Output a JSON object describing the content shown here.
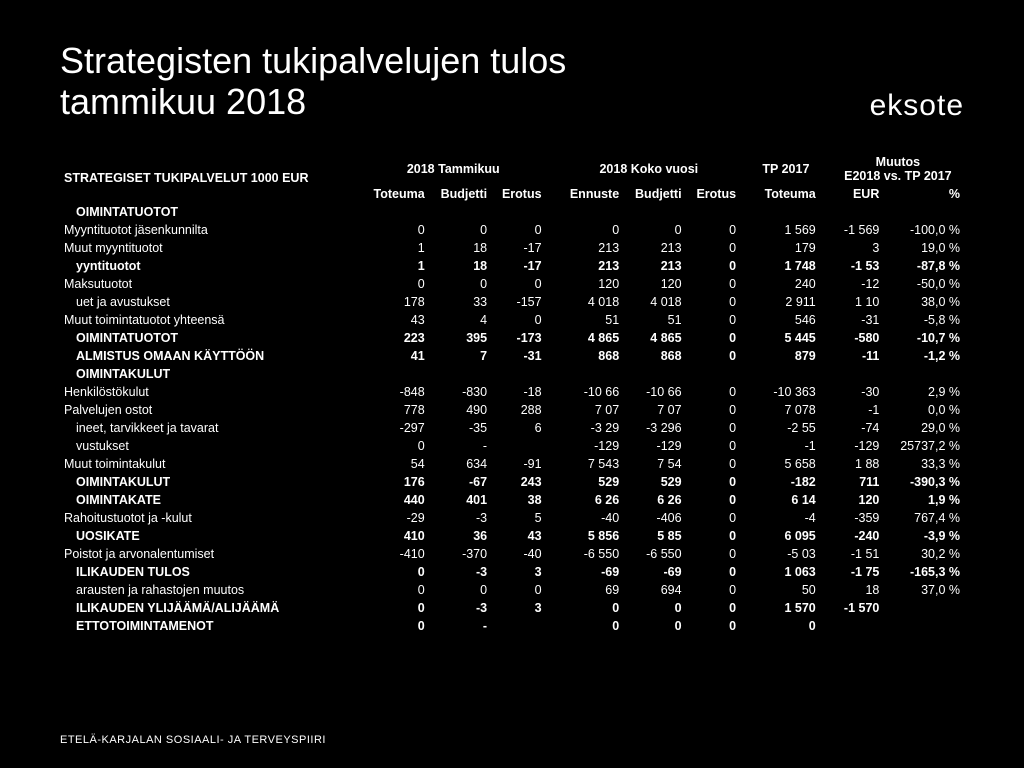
{
  "title_line1": "Strategisten tukipalvelujen tulos",
  "title_line2": "tammikuu 2018",
  "brand": "eksote",
  "footer": "ETELÄ-KARJALAN SOSIAALI- JA TERVEYSPIIRI",
  "headers": {
    "row_label": "STRATEGISET TUKIPALVELUT 1000 EUR",
    "g1": "2018 Tammikuu",
    "g2": "2018 Koko vuosi",
    "g3": "TP 2017",
    "g4a": "Muutos",
    "g4b": "E2018 vs. TP 2017",
    "c_toteuma": "Toteuma",
    "c_budjetti": "Budjetti",
    "c_erotus": "Erotus",
    "c_ennuste": "Ennuste",
    "c_eur": "EUR",
    "c_pct": "%"
  },
  "rows": [
    {
      "style": "bold indent",
      "label": "OIMINTATUOTOT",
      "v": [
        "",
        "",
        "",
        "",
        "",
        "",
        "",
        "",
        ""
      ]
    },
    {
      "style": "",
      "label": "Myyntituotot jäsenkunnilta",
      "v": [
        "0",
        "0",
        "0",
        "0",
        "0",
        "0",
        "1 569",
        "-1 569",
        "-100,0 %"
      ]
    },
    {
      "style": "",
      "label": "Muut myyntituotot",
      "v": [
        "1",
        "18",
        "-17",
        "213",
        "213",
        "0",
        "179",
        "3",
        "19,0 %"
      ]
    },
    {
      "style": "bold indent",
      "label": "yyntituotot",
      "v": [
        "1",
        "18",
        "-17",
        "213",
        "213",
        "0",
        "1 748",
        "-1 53",
        "-87,8 %"
      ]
    },
    {
      "style": "",
      "label": "Maksutuotot",
      "v": [
        "0",
        "0",
        "0",
        "120",
        "120",
        "0",
        "240",
        "-12",
        "-50,0 %"
      ]
    },
    {
      "style": "indent",
      "label": "uet ja avustukset",
      "v": [
        "178",
        "33",
        "-157",
        "4 018",
        "4 018",
        "0",
        "2 911",
        "1 10",
        "38,0 %"
      ]
    },
    {
      "style": "",
      "label": "Muut toimintatuotot yhteensä",
      "v": [
        "43",
        "4",
        "0",
        "51",
        "51",
        "0",
        "546",
        "-31",
        "-5,8 %"
      ]
    },
    {
      "style": "bold indent",
      "label": "OIMINTATUOTOT",
      "v": [
        "223",
        "395",
        "-173",
        "4 865",
        "4 865",
        "0",
        "5 445",
        "-580",
        "-10,7 %"
      ]
    },
    {
      "style": "bold indent",
      "label": "ALMISTUS OMAAN KÄYTTÖÖN",
      "v": [
        "41",
        "7",
        "-31",
        "868",
        "868",
        "0",
        "879",
        "-11",
        "-1,2 %"
      ]
    },
    {
      "style": "bold indent",
      "label": "OIMINTAKULUT",
      "v": [
        "",
        "",
        "",
        "",
        "",
        "",
        "",
        "",
        ""
      ]
    },
    {
      "style": "",
      "label": "Henkilöstökulut",
      "v": [
        "-848",
        "-830",
        "-18",
        "-10 66",
        "-10 66",
        "0",
        "-10 363",
        "-30",
        "2,9 %"
      ]
    },
    {
      "style": "",
      "label": "Palvelujen ostot",
      "v": [
        "778",
        "490",
        "288",
        "7 07",
        "7 07",
        "0",
        "7 078",
        "-1",
        "0,0 %"
      ]
    },
    {
      "style": "indent",
      "label": "ineet, tarvikkeet ja tavarat",
      "v": [
        "-297",
        "-35",
        "6",
        "-3 29",
        "-3 296",
        "0",
        "-2 55",
        "-74",
        "29,0 %"
      ]
    },
    {
      "style": "indent",
      "label": "vustukset",
      "v": [
        "0",
        "-",
        "",
        "-129",
        "-129",
        "0",
        "-1",
        "-129",
        "25737,2 %"
      ]
    },
    {
      "style": "",
      "label": "Muut toimintakulut",
      "v": [
        "54",
        "634",
        "-91",
        "7 543",
        "7 54",
        "0",
        "5 658",
        "1 88",
        "33,3 %"
      ]
    },
    {
      "style": "bold indent",
      "label": "OIMINTAKULUT",
      "v": [
        "176",
        "-67",
        "243",
        "529",
        "529",
        "0",
        "-182",
        "711",
        "-390,3 %"
      ]
    },
    {
      "style": "bold indent",
      "label": "OIMINTAKATE",
      "v": [
        "440",
        "401",
        "38",
        "6 26",
        "6 26",
        "0",
        "6 14",
        "120",
        "1,9 %"
      ]
    },
    {
      "style": "",
      "label": "Rahoitustuotot ja -kulut",
      "v": [
        "-29",
        "-3",
        "5",
        "-40",
        "-406",
        "0",
        "-4",
        "-359",
        "767,4 %"
      ]
    },
    {
      "style": "bold indent",
      "label": "UOSIKATE",
      "v": [
        "410",
        "36",
        "43",
        "5 856",
        "5 85",
        "0",
        "6 095",
        "-240",
        "-3,9 %"
      ]
    },
    {
      "style": "",
      "label": "Poistot ja arvonalentumiset",
      "v": [
        "-410",
        "-370",
        "-40",
        "-6 550",
        "-6 550",
        "0",
        "-5 03",
        "-1 51",
        "30,2 %"
      ]
    },
    {
      "style": "bold indent",
      "label": "ILIKAUDEN TULOS",
      "v": [
        "0",
        "-3",
        "3",
        "-69",
        "-69",
        "0",
        "1 063",
        "-1 75",
        "-165,3 %"
      ]
    },
    {
      "style": "indent",
      "label": "arausten ja rahastojen muutos",
      "v": [
        "0",
        "0",
        "0",
        "69",
        "694",
        "0",
        "50",
        "18",
        "37,0 %"
      ]
    },
    {
      "style": "bold indent",
      "label": "ILIKAUDEN YLIJÄÄMÄ/ALIJÄÄMÄ",
      "v": [
        "0",
        "-3",
        "3",
        "0",
        "0",
        "0",
        "1 570",
        "-1 570",
        ""
      ]
    },
    {
      "style": "bold indent",
      "label": "ETTOTOIMINTAMENOT",
      "v": [
        "0",
        "-",
        "",
        "0",
        "0",
        "0",
        "0",
        "",
        ""
      ]
    }
  ],
  "style": {
    "bg": "#000000",
    "fg": "#ffffff",
    "title_fontsize": 36,
    "body_fontsize": 12.5,
    "brand_fontsize": 30,
    "footer_fontsize": 11
  }
}
